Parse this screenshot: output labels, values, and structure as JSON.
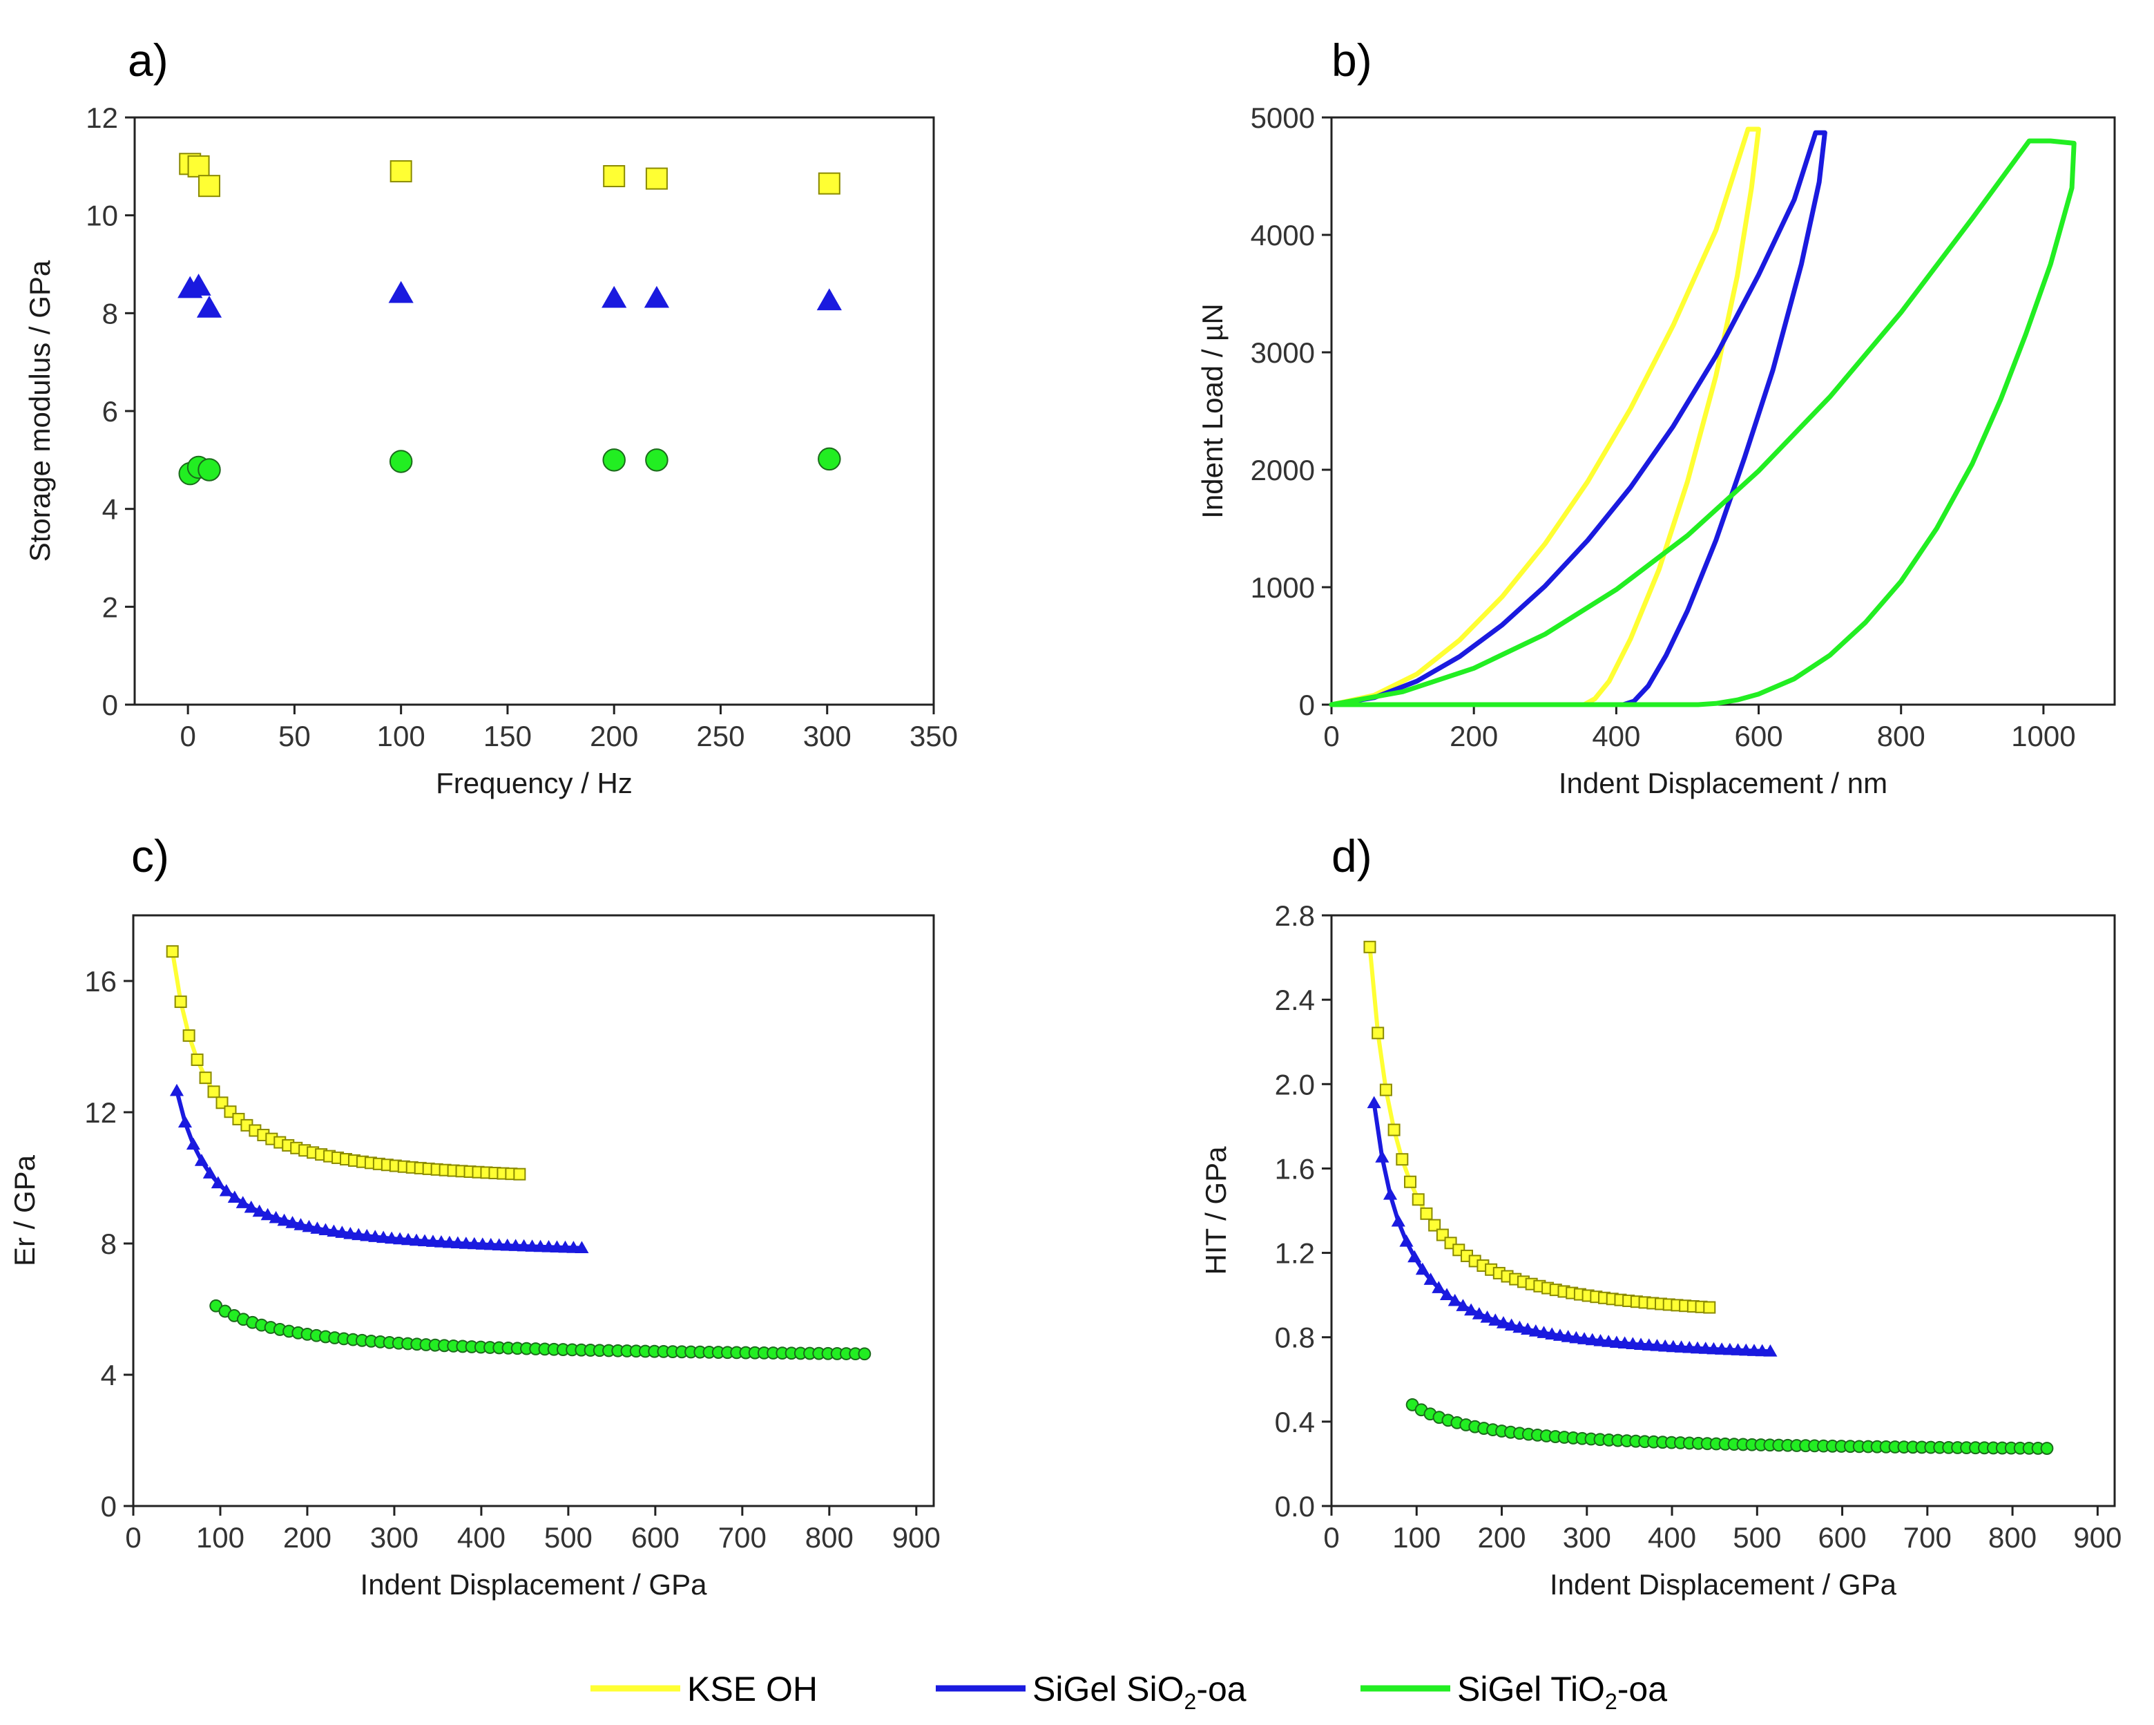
{
  "colors": {
    "yellow": "#FFFF33",
    "yellow_edge": "#8a8a00",
    "blue": "#1a1adf",
    "green": "#22ee22",
    "green_edge": "#1b6b1b",
    "axis": "#222222"
  },
  "legend": {
    "items": [
      {
        "label": "KSE OH",
        "color": "#FFFF33"
      },
      {
        "label": "SiGel SiO",
        "sub": "2",
        "suffix": "-oa",
        "color": "#1a1adf"
      },
      {
        "label": "SiGel TiO",
        "sub": "2",
        "suffix": "-oa",
        "color": "#22ee22"
      }
    ]
  },
  "chart_data": [
    {
      "id": "a",
      "panel_label": "a)",
      "type": "scatter",
      "xlabel": "Frequency / Hz",
      "ylabel": "Storage modulus / GPa",
      "xlim": [
        -25,
        350
      ],
      "ylim": [
        0,
        12
      ],
      "xticks": [
        0,
        50,
        100,
        150,
        200,
        250,
        300,
        350
      ],
      "yticks": [
        0,
        2,
        4,
        6,
        8,
        10,
        12
      ],
      "series": [
        {
          "name": "KSE OH",
          "marker": "square",
          "color": "#FFFF33",
          "x": [
            1,
            5,
            10,
            100,
            200,
            220,
            301
          ],
          "y": [
            11.05,
            11.0,
            10.6,
            10.9,
            10.8,
            10.75,
            10.65
          ]
        },
        {
          "name": "SiGel SiO2-oa",
          "marker": "triangle",
          "color": "#1a1adf",
          "x": [
            1,
            5,
            10,
            100,
            200,
            220,
            301
          ],
          "y": [
            8.5,
            8.55,
            8.1,
            8.4,
            8.3,
            8.3,
            8.25
          ]
        },
        {
          "name": "SiGel TiO2-oa",
          "marker": "circle",
          "color": "#22ee22",
          "x": [
            1,
            5,
            10,
            100,
            200,
            220,
            301
          ],
          "y": [
            4.72,
            4.85,
            4.8,
            4.97,
            5.0,
            5.0,
            5.02
          ]
        }
      ]
    },
    {
      "id": "b",
      "panel_label": "b)",
      "type": "line",
      "xlabel": "Indent Displacement / nm",
      "ylabel": "Indent Load / µN",
      "xlim": [
        0,
        1100
      ],
      "ylim": [
        0,
        5000
      ],
      "xticks": [
        0,
        200,
        400,
        600,
        800,
        1000
      ],
      "yticks": [
        0,
        1000,
        2000,
        3000,
        4000,
        5000
      ],
      "series": [
        {
          "name": "KSE OH",
          "color": "#FFFF33",
          "x": [
            0,
            60,
            120,
            180,
            240,
            300,
            360,
            420,
            480,
            540,
            585,
            600,
            590,
            570,
            540,
            500,
            460,
            420,
            390,
            370,
            355,
            345,
            150,
            0
          ],
          "y": [
            0,
            80,
            260,
            550,
            920,
            1370,
            1900,
            2520,
            3230,
            4040,
            4900,
            4900,
            4400,
            3650,
            2800,
            1900,
            1150,
            560,
            200,
            50,
            0,
            0,
            0,
            0
          ]
        },
        {
          "name": "SiGel SiO2-oa",
          "color": "#1a1adf",
          "x": [
            0,
            60,
            120,
            180,
            240,
            300,
            360,
            420,
            480,
            540,
            600,
            650,
            680,
            693,
            685,
            660,
            620,
            580,
            540,
            500,
            470,
            445,
            425,
            410,
            200,
            0
          ],
          "y": [
            0,
            60,
            200,
            410,
            680,
            1010,
            1400,
            1850,
            2370,
            2970,
            3660,
            4300,
            4870,
            4870,
            4450,
            3750,
            2850,
            2100,
            1400,
            800,
            420,
            160,
            30,
            0,
            0,
            0
          ]
        },
        {
          "name": "SiGel TiO2-oa",
          "color": "#22ee22",
          "x": [
            0,
            100,
            200,
            300,
            400,
            500,
            600,
            700,
            800,
            900,
            980,
            1010,
            1043,
            1040,
            1010,
            975,
            940,
            900,
            850,
            800,
            750,
            700,
            650,
            600,
            570,
            540,
            515,
            495,
            300,
            0
          ],
          "y": [
            0,
            110,
            310,
            600,
            980,
            1440,
            1990,
            2620,
            3340,
            4140,
            4800,
            4800,
            4780,
            4400,
            3750,
            3150,
            2600,
            2050,
            1500,
            1050,
            700,
            420,
            220,
            90,
            40,
            10,
            0,
            0,
            0,
            0
          ]
        }
      ]
    },
    {
      "id": "c",
      "panel_label": "c)",
      "type": "line",
      "xlabel": "Indent Displacement / GPa",
      "ylabel": "Er / GPa",
      "xlim": [
        0,
        920
      ],
      "ylim": [
        0,
        18
      ],
      "xticks": [
        0,
        100,
        200,
        300,
        400,
        500,
        600,
        700,
        800,
        900
      ],
      "yticks": [
        0,
        4,
        8,
        12,
        16
      ],
      "series": [
        {
          "name": "KSE OH",
          "marker": "square",
          "color": "#FFFF33",
          "curve": {
            "a": 9.7,
            "b": 7.2,
            "n": 1.25,
            "x0": 45,
            "x1": 450,
            "step": 9.5
          }
        },
        {
          "name": "SiGel SiO2-oa",
          "marker": "triangle",
          "color": "#1a1adf",
          "curve": {
            "a": 7.55,
            "b": 5.1,
            "n": 1.2,
            "x0": 50,
            "x1": 520,
            "step": 9.5
          }
        },
        {
          "name": "SiGel TiO2-oa",
          "marker": "circle",
          "color": "#22ee22",
          "curve": {
            "a": 4.45,
            "b": 1.65,
            "n": 1.0,
            "x0": 95,
            "x1": 842,
            "step": 10.5
          }
        }
      ]
    },
    {
      "id": "d",
      "panel_label": "d)",
      "type": "line",
      "xlabel": "Indent Displacement / GPa",
      "ylabel": "HIT / GPa",
      "xlim": [
        0,
        920
      ],
      "ylim": [
        0,
        2.8
      ],
      "xticks": [
        0,
        100,
        200,
        300,
        400,
        500,
        600,
        700,
        800,
        900
      ],
      "yticks": [
        0.0,
        0.4,
        0.8,
        1.2,
        1.6,
        2.0,
        2.4,
        2.8
      ],
      "series": [
        {
          "name": "KSE OH",
          "marker": "square",
          "color": "#FFFF33",
          "curve": {
            "a": 0.86,
            "b": 1.79,
            "n": 1.35,
            "x0": 45,
            "x1": 450,
            "step": 9.5
          }
        },
        {
          "name": "SiGel SiO2-oa",
          "marker": "triangle",
          "color": "#1a1adf",
          "curve": {
            "a": 0.68,
            "b": 1.23,
            "n": 1.35,
            "x0": 50,
            "x1": 520,
            "step": 9.5
          }
        },
        {
          "name": "SiGel TiO2-oa",
          "marker": "circle",
          "color": "#22ee22",
          "curve": {
            "a": 0.25,
            "b": 0.23,
            "n": 1.05,
            "x0": 95,
            "x1": 842,
            "step": 10.5
          }
        }
      ]
    }
  ]
}
